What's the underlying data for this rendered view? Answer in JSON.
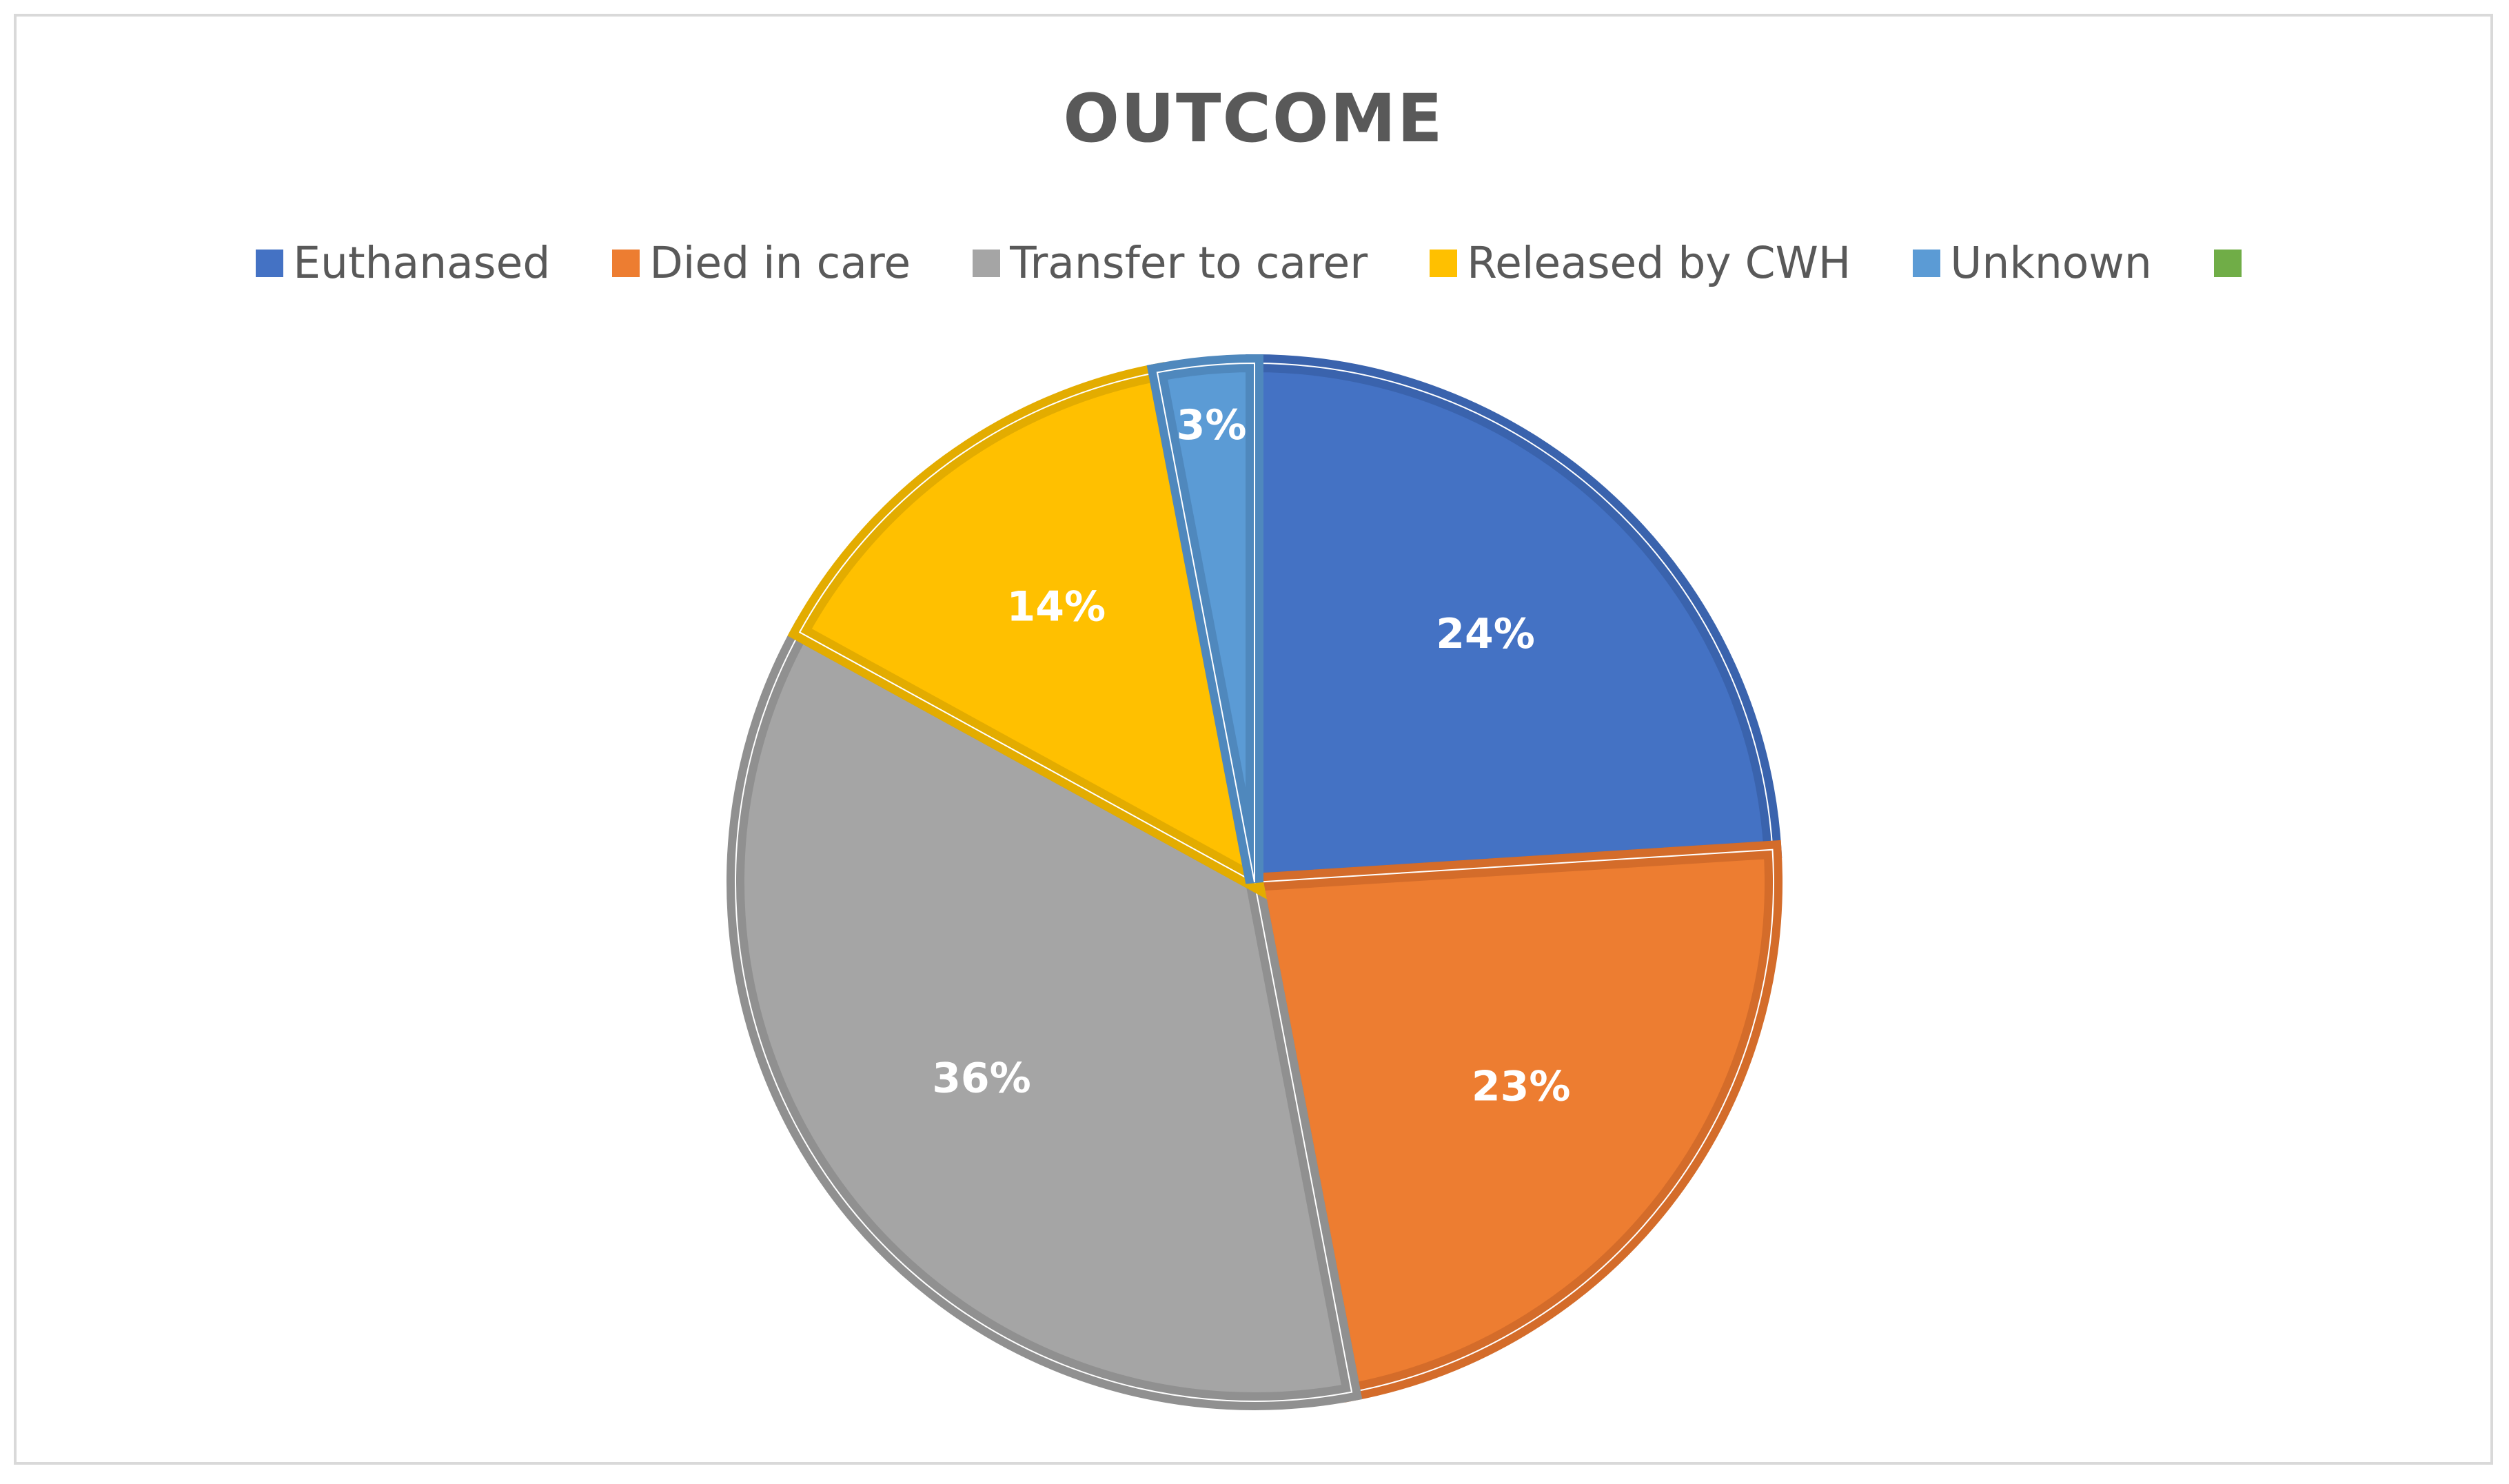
{
  "chart_data": {
    "type": "pie",
    "title": "OUTCOME",
    "legend_position": "top",
    "categories": [
      "Euthanased",
      "Died in care",
      "Transfer to carer",
      "Released by CWH",
      "Unknown",
      ""
    ],
    "values": [
      24,
      23,
      36,
      14,
      3,
      0
    ],
    "labels": [
      "24%",
      "23%",
      "36%",
      "14%",
      "3%",
      ""
    ],
    "colors": [
      "#4472C4",
      "#ED7D31",
      "#A5A5A5",
      "#FFC000",
      "#5B9BD5",
      "#70AD47"
    ],
    "border_colors": [
      "#3A63AD",
      "#D46C2A",
      "#909090",
      "#E3AC00",
      "#4F88BD",
      "#62994A"
    ],
    "start_angle_deg": 0,
    "direction": "clockwise"
  }
}
